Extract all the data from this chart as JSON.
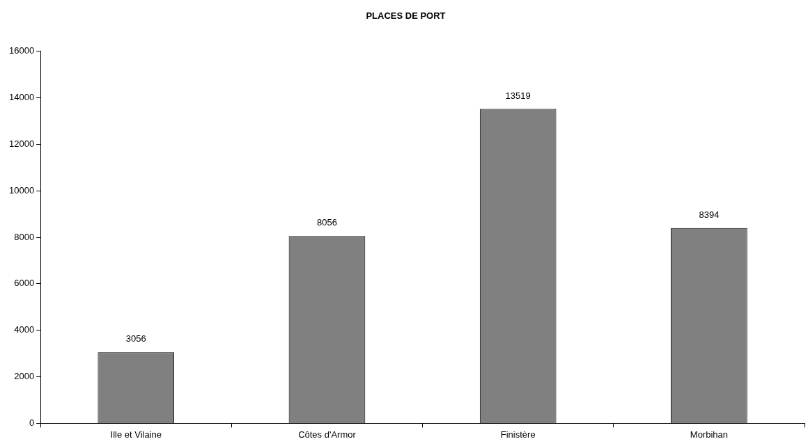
{
  "chart_data": {
    "type": "bar",
    "title": "PLACES DE PORT",
    "categories": [
      "Ille et Vilaine",
      "Côtes d'Armor",
      "Finistère",
      "Morbihan"
    ],
    "values": [
      3056,
      8056,
      13519,
      8394
    ],
    "color": "#808080",
    "ylim": [
      0,
      16000
    ],
    "yticks": [
      0,
      2000,
      4000,
      6000,
      8000,
      10000,
      12000,
      14000,
      16000
    ],
    "data_labels": true,
    "grid": false,
    "legend": false
  }
}
